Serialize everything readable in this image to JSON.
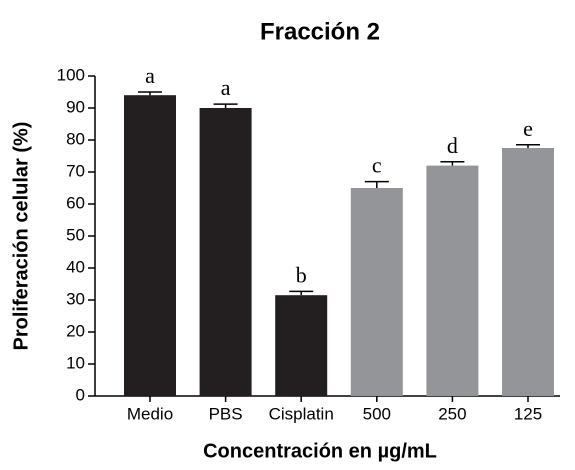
{
  "chart_data": {
    "type": "bar",
    "title": "Fracción 2",
    "x_label": "Concentración en µg/mL",
    "y_label": "Proliferación celular (%)",
    "categories": [
      "Medio",
      "PBS",
      "Cisplatin",
      "500",
      "250",
      "125"
    ],
    "values": [
      94,
      90,
      31.5,
      65,
      72,
      77.5
    ],
    "errors": [
      1,
      1.2,
      1.2,
      2,
      1.2,
      1
    ],
    "letters": [
      "a",
      "a",
      "b",
      "c",
      "d",
      "e"
    ],
    "colors": [
      "#231f20",
      "#231f20",
      "#231f20",
      "#939598",
      "#939598",
      "#939598"
    ],
    "ylim": [
      0,
      100
    ],
    "yticks": [
      0,
      10,
      20,
      30,
      40,
      50,
      60,
      70,
      80,
      90,
      100
    ]
  }
}
